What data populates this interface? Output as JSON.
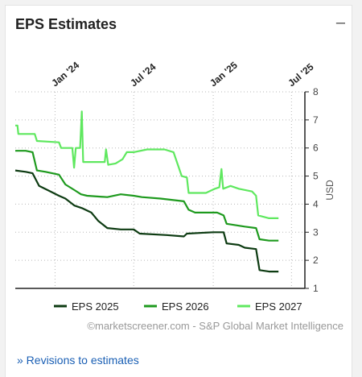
{
  "widget": {
    "title": "EPS Estimates",
    "collapse_icon": "minus-icon",
    "link_label": "» Revisions to estimates"
  },
  "chart_data": {
    "type": "line",
    "title": "EPS Estimates",
    "ylabel": "USD",
    "ylim": [
      1,
      8
    ],
    "y_ticks": [
      "1",
      "2",
      "3",
      "4",
      "5",
      "6",
      "7",
      "8"
    ],
    "y_axis_position": "right",
    "x_ticks": [
      "Jan '24",
      "Jul '24",
      "Jan '25",
      "Jul '25"
    ],
    "grid": true,
    "legend_position": "bottom",
    "credit": "©marketscreener.com - S&P Global Market Intelligence",
    "series": [
      {
        "name": "EPS 2025",
        "color": "#0d3b12",
        "points": [
          [
            "2023-10-01",
            5.2
          ],
          [
            "2023-10-25",
            5.15
          ],
          [
            "2023-11-10",
            5.1
          ],
          [
            "2023-11-25",
            4.65
          ],
          [
            "2023-12-15",
            4.5
          ],
          [
            "2024-01-10",
            4.3
          ],
          [
            "2024-01-25",
            4.2
          ],
          [
            "2024-02-15",
            3.95
          ],
          [
            "2024-03-05",
            3.85
          ],
          [
            "2024-03-25",
            3.7
          ],
          [
            "2024-04-10",
            3.4
          ],
          [
            "2024-05-01",
            3.15
          ],
          [
            "2024-06-01",
            3.1
          ],
          [
            "2024-07-01",
            3.1
          ],
          [
            "2024-07-15",
            2.95
          ],
          [
            "2024-09-15",
            2.9
          ],
          [
            "2024-10-25",
            2.85
          ],
          [
            "2024-11-01",
            2.95
          ],
          [
            "2025-01-01",
            3.0
          ],
          [
            "2025-01-25",
            3.0
          ],
          [
            "2025-02-01",
            2.6
          ],
          [
            "2025-03-01",
            2.55
          ],
          [
            "2025-03-15",
            2.45
          ],
          [
            "2025-04-10",
            2.4
          ],
          [
            "2025-04-18",
            1.65
          ],
          [
            "2025-05-10",
            1.6
          ],
          [
            "2025-06-01",
            1.6
          ]
        ]
      },
      {
        "name": "EPS 2026",
        "color": "#1e9a1e",
        "points": [
          [
            "2023-10-01",
            5.9
          ],
          [
            "2023-10-25",
            5.9
          ],
          [
            "2023-11-10",
            5.85
          ],
          [
            "2023-11-20",
            5.2
          ],
          [
            "2023-12-10",
            5.15
          ],
          [
            "2024-01-10",
            5.05
          ],
          [
            "2024-01-25",
            4.7
          ],
          [
            "2024-02-15",
            4.5
          ],
          [
            "2024-03-01",
            4.35
          ],
          [
            "2024-03-15",
            4.3
          ],
          [
            "2024-05-01",
            4.25
          ],
          [
            "2024-06-01",
            4.35
          ],
          [
            "2024-07-01",
            4.3
          ],
          [
            "2024-07-20",
            4.25
          ],
          [
            "2024-09-01",
            4.2
          ],
          [
            "2024-10-25",
            4.1
          ],
          [
            "2024-11-05",
            3.8
          ],
          [
            "2024-11-20",
            3.7
          ],
          [
            "2025-01-10",
            3.7
          ],
          [
            "2025-01-25",
            3.6
          ],
          [
            "2025-02-01",
            3.3
          ],
          [
            "2025-03-15",
            3.2
          ],
          [
            "2025-04-10",
            3.15
          ],
          [
            "2025-04-18",
            2.75
          ],
          [
            "2025-05-10",
            2.7
          ],
          [
            "2025-06-01",
            2.7
          ]
        ]
      },
      {
        "name": "EPS 2027",
        "color": "#5fe85f",
        "points": [
          [
            "2023-10-01",
            6.8
          ],
          [
            "2023-10-06",
            6.8
          ],
          [
            "2023-10-08",
            6.5
          ],
          [
            "2023-11-15",
            6.5
          ],
          [
            "2023-11-20",
            6.25
          ],
          [
            "2024-01-10",
            6.2
          ],
          [
            "2024-01-15",
            6.0
          ],
          [
            "2024-02-10",
            6.0
          ],
          [
            "2024-02-14",
            5.3
          ],
          [
            "2024-02-18",
            6.0
          ],
          [
            "2024-02-28",
            6.0
          ],
          [
            "2024-03-03",
            7.3
          ],
          [
            "2024-03-06",
            5.5
          ],
          [
            "2024-04-25",
            5.5
          ],
          [
            "2024-04-28",
            5.95
          ],
          [
            "2024-05-03",
            5.4
          ],
          [
            "2024-05-20",
            5.45
          ],
          [
            "2024-06-05",
            5.6
          ],
          [
            "2024-06-15",
            5.85
          ],
          [
            "2024-07-01",
            5.85
          ],
          [
            "2024-08-01",
            5.95
          ],
          [
            "2024-09-10",
            5.95
          ],
          [
            "2024-10-01",
            5.85
          ],
          [
            "2024-10-20",
            5.0
          ],
          [
            "2024-11-01",
            4.95
          ],
          [
            "2024-11-05",
            4.4
          ],
          [
            "2024-12-15",
            4.4
          ],
          [
            "2025-01-05",
            4.55
          ],
          [
            "2025-01-15",
            4.6
          ],
          [
            "2025-01-20",
            5.25
          ],
          [
            "2025-01-24",
            4.55
          ],
          [
            "2025-02-10",
            4.65
          ],
          [
            "2025-03-01",
            4.55
          ],
          [
            "2025-04-01",
            4.45
          ],
          [
            "2025-04-10",
            4.3
          ],
          [
            "2025-04-15",
            3.6
          ],
          [
            "2025-05-10",
            3.5
          ],
          [
            "2025-06-01",
            3.5
          ]
        ]
      }
    ]
  }
}
